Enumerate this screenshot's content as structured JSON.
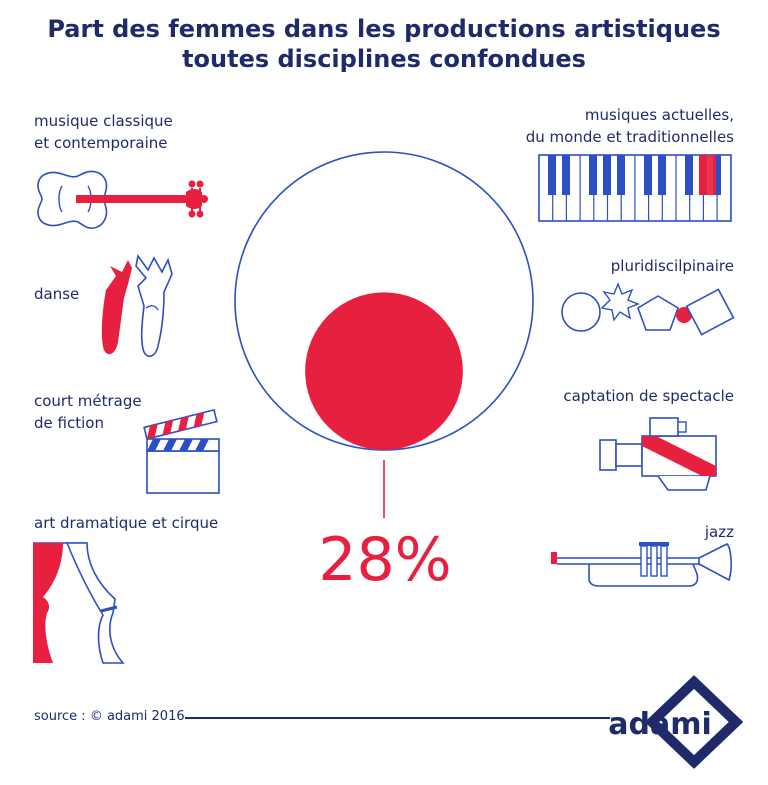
{
  "title_line1": "Part des femmes dans les productions artistiques",
  "title_line2": "toutes disciplines confondues",
  "chart_data": {
    "type": "proportional-area",
    "value": 28,
    "unit": "%",
    "value_label": "28%",
    "whole": 100
  },
  "disciplines_left": [
    {
      "line1": "musique classique",
      "line2": "et contemporaine",
      "icon": "violin-icon"
    },
    {
      "line1": "danse",
      "line2": "",
      "icon": "ballet-shoes-icon"
    },
    {
      "line1": "court métrage",
      "line2": "de fiction",
      "icon": "clapperboard-icon"
    },
    {
      "line1": "art dramatique et cirque",
      "line2": "",
      "icon": "stage-curtain-icon"
    }
  ],
  "disciplines_right": [
    {
      "line1": "musiques actuelles,",
      "line2": "du monde et traditionnelles",
      "icon": "piano-keyboard-icon"
    },
    {
      "line1": "pluridiscilpinaire",
      "line2": "",
      "icon": "shapes-icon"
    },
    {
      "line1": "captation de spectacle",
      "line2": "",
      "icon": "video-camera-icon"
    },
    {
      "line1": "jazz",
      "line2": "",
      "icon": "trumpet-icon"
    }
  ],
  "source": "source : © adami 2016",
  "logo_text": "adami",
  "colors": {
    "navy": "#1f2a6b",
    "blue": "#2c4fc4",
    "red": "#e8203f",
    "white": "#ffffff"
  }
}
